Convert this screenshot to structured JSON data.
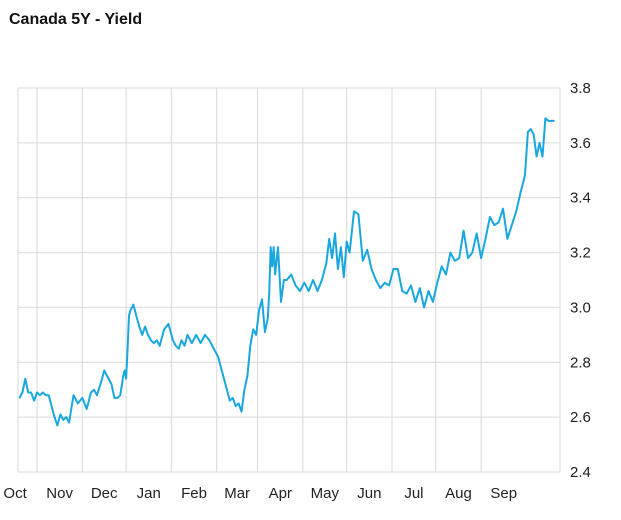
{
  "chart_data": {
    "type": "line",
    "title": "Canada 5Y - Yield",
    "x_ticks": [
      "Oct",
      "Nov",
      "Dec",
      "Jan",
      "Feb",
      "Mar",
      "Apr",
      "May",
      "Jun",
      "Jul",
      "Aug",
      "Sep"
    ],
    "y_ticks": [
      "3.8",
      "3.6",
      "3.4",
      "3.2",
      "3.0",
      "2.8",
      "2.6",
      "2.4"
    ],
    "xlim": [
      "2022-09-18",
      "2023-09-24"
    ],
    "ylim": [
      2.4,
      3.8
    ],
    "grid": true,
    "y_axis_position": "right",
    "line_color": "#1aa7de",
    "series": [
      {
        "x": [
          "2022-09-19",
          "2022-09-21",
          "2022-09-23",
          "2022-09-25",
          "2022-09-27",
          "2022-09-29",
          "2022-10-01",
          "2022-10-03",
          "2022-10-05",
          "2022-10-07",
          "2022-10-09",
          "2022-10-11",
          "2022-10-13",
          "2022-10-15",
          "2022-10-17",
          "2022-10-19",
          "2022-10-21",
          "2022-10-23",
          "2022-10-26",
          "2022-10-29",
          "2022-11-01",
          "2022-11-04",
          "2022-11-07",
          "2022-11-09",
          "2022-11-11",
          "2022-11-14",
          "2022-11-16",
          "2022-11-18",
          "2022-11-21",
          "2022-11-23",
          "2022-11-25",
          "2022-11-27",
          "2022-11-29",
          "2022-11-30",
          "2022-12-01",
          "2022-12-02",
          "2022-12-03",
          "2022-12-04",
          "2022-12-06",
          "2022-12-08",
          "2022-12-10",
          "2022-12-12",
          "2022-12-14",
          "2022-12-16",
          "2022-12-18",
          "2022-12-20",
          "2022-12-22",
          "2022-12-24",
          "2022-12-27",
          "2022-12-30",
          "2023-01-02",
          "2023-01-04",
          "2023-01-06",
          "2023-01-08",
          "2023-01-10",
          "2023-01-12",
          "2023-01-15",
          "2023-01-18",
          "2023-01-21",
          "2023-01-24",
          "2023-01-27",
          "2023-01-30",
          "2023-02-02",
          "2023-02-05",
          "2023-02-08",
          "2023-02-10",
          "2023-02-12",
          "2023-02-14",
          "2023-02-16",
          "2023-02-18",
          "2023-02-20",
          "2023-02-22",
          "2023-02-24",
          "2023-02-26",
          "2023-02-28",
          "2023-03-02",
          "2023-03-04",
          "2023-03-06",
          "2023-03-08",
          "2023-03-09",
          "2023-03-10",
          "2023-03-11",
          "2023-03-12",
          "2023-03-13",
          "2023-03-15",
          "2023-03-17",
          "2023-03-19",
          "2023-03-21",
          "2023-03-24",
          "2023-03-27",
          "2023-03-30",
          "2023-04-02",
          "2023-04-05",
          "2023-04-08",
          "2023-04-11",
          "2023-04-14",
          "2023-04-17",
          "2023-04-19",
          "2023-04-21",
          "2023-04-23",
          "2023-04-25",
          "2023-04-27",
          "2023-04-29",
          "2023-05-01",
          "2023-05-03",
          "2023-05-06",
          "2023-05-09",
          "2023-05-12",
          "2023-05-15",
          "2023-05-18",
          "2023-05-21",
          "2023-05-24",
          "2023-05-27",
          "2023-05-30",
          "2023-06-02",
          "2023-06-05",
          "2023-06-08",
          "2023-06-11",
          "2023-06-14",
          "2023-06-17",
          "2023-06-20",
          "2023-06-23",
          "2023-06-26",
          "2023-06-29",
          "2023-07-02",
          "2023-07-05",
          "2023-07-08",
          "2023-07-11",
          "2023-07-14",
          "2023-07-17",
          "2023-07-20",
          "2023-07-23",
          "2023-07-26",
          "2023-07-29",
          "2023-08-01",
          "2023-08-04",
          "2023-08-07",
          "2023-08-10",
          "2023-08-13",
          "2023-08-16",
          "2023-08-19",
          "2023-08-22",
          "2023-08-25",
          "2023-08-28",
          "2023-08-31",
          "2023-09-02",
          "2023-09-04",
          "2023-09-06",
          "2023-09-08",
          "2023-09-10",
          "2023-09-12",
          "2023-09-14",
          "2023-09-16",
          "2023-09-18",
          "2023-09-20"
        ],
        "values": [
          2.67,
          2.69,
          2.74,
          2.69,
          2.69,
          2.66,
          2.69,
          2.68,
          2.69,
          2.68,
          2.68,
          2.64,
          2.6,
          2.57,
          2.61,
          2.59,
          2.6,
          2.58,
          2.68,
          2.65,
          2.67,
          2.63,
          2.69,
          2.7,
          2.68,
          2.73,
          2.77,
          2.75,
          2.72,
          2.67,
          2.67,
          2.68,
          2.75,
          2.77,
          2.74,
          2.85,
          2.97,
          2.99,
          3.01,
          2.97,
          2.93,
          2.9,
          2.93,
          2.9,
          2.88,
          2.87,
          2.88,
          2.86,
          2.92,
          2.94,
          2.88,
          2.86,
          2.85,
          2.88,
          2.86,
          2.9,
          2.87,
          2.9,
          2.87,
          2.9,
          2.88,
          2.85,
          2.82,
          2.76,
          2.7,
          2.66,
          2.67,
          2.64,
          2.65,
          2.62,
          2.7,
          2.75,
          2.86,
          2.92,
          2.9,
          2.99,
          3.03,
          2.91,
          2.96,
          3.06,
          3.22,
          3.15,
          3.22,
          3.12,
          3.22,
          3.02,
          3.1,
          3.1,
          3.12,
          3.08,
          3.06,
          3.09,
          3.06,
          3.1,
          3.06,
          3.1,
          3.16,
          3.25,
          3.18,
          3.27,
          3.14,
          3.22,
          3.11,
          3.24,
          3.2,
          3.35,
          3.34,
          3.17,
          3.21,
          3.14,
          3.1,
          3.07,
          3.09,
          3.08,
          3.14,
          3.14,
          3.06,
          3.05,
          3.08,
          3.02,
          3.07,
          3.0,
          3.06,
          3.02,
          3.09,
          3.15,
          3.12,
          3.2,
          3.17,
          3.18,
          3.28,
          3.18,
          3.2,
          3.27,
          3.18,
          3.25,
          3.33,
          3.3,
          3.31,
          3.36,
          3.25,
          3.3,
          3.35,
          3.42,
          3.48,
          3.64,
          3.65,
          3.63,
          3.55,
          3.6,
          3.55,
          3.69,
          3.68,
          3.68,
          3.68
        ]
      }
    ]
  }
}
